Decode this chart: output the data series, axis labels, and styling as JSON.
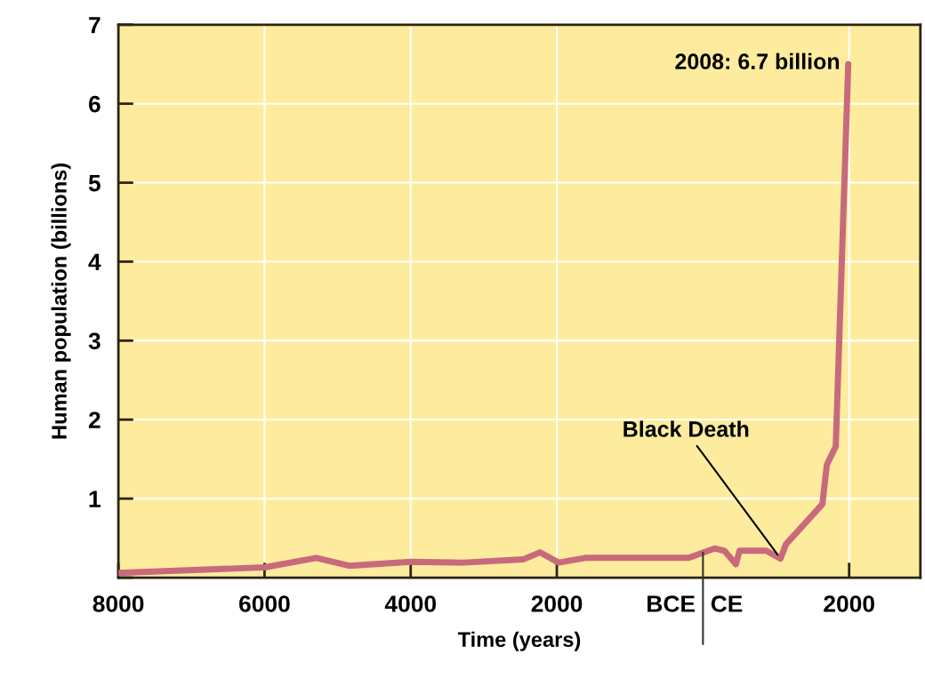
{
  "chart_data": {
    "type": "line",
    "xlabel": "Time (years)",
    "ylabel": "Human population (billions)",
    "x": [
      -8000,
      -6000,
      -5293,
      -4841,
      -4000,
      -3280,
      -2463,
      -2232,
      -1976,
      -1610,
      -195,
      158,
      293,
      451,
      500,
      866,
      1061,
      1134,
      1634,
      1695,
      1817,
      1988
    ],
    "series": [
      {
        "color": "#c8697c",
        "values": [
          0.06,
          0.13,
          0.25,
          0.15,
          0.2,
          0.19,
          0.23,
          0.32,
          0.19,
          0.25,
          0.25,
          0.37,
          0.34,
          0.17,
          0.34,
          0.34,
          0.24,
          0.42,
          0.93,
          1.43,
          1.66,
          6.5
        ]
      }
    ],
    "xlim": [
      -8000,
      2975
    ],
    "xticks": [
      {
        "value": -8000,
        "label": "8000"
      },
      {
        "value": -6000,
        "label": "6000"
      },
      {
        "value": -4000,
        "label": "4000"
      },
      {
        "value": -2000,
        "label": "2000"
      },
      {
        "value": 2000,
        "label": "2000"
      }
    ],
    "ylim": [
      0,
      7
    ],
    "yticks": [
      {
        "value": 0,
        "label": null
      },
      1,
      2,
      3,
      4,
      5,
      6,
      7
    ],
    "ref_lines": [
      {
        "axis": "x",
        "value": 0,
        "label": "BCE CE",
        "color": "#333333"
      }
    ],
    "annotations": [
      "2008: 6.7 billion",
      {
        "text": "Black Death",
        "x": 1061,
        "y": 0.24
      }
    ],
    "grid": true,
    "marker": "none",
    "line_style": "solid"
  }
}
